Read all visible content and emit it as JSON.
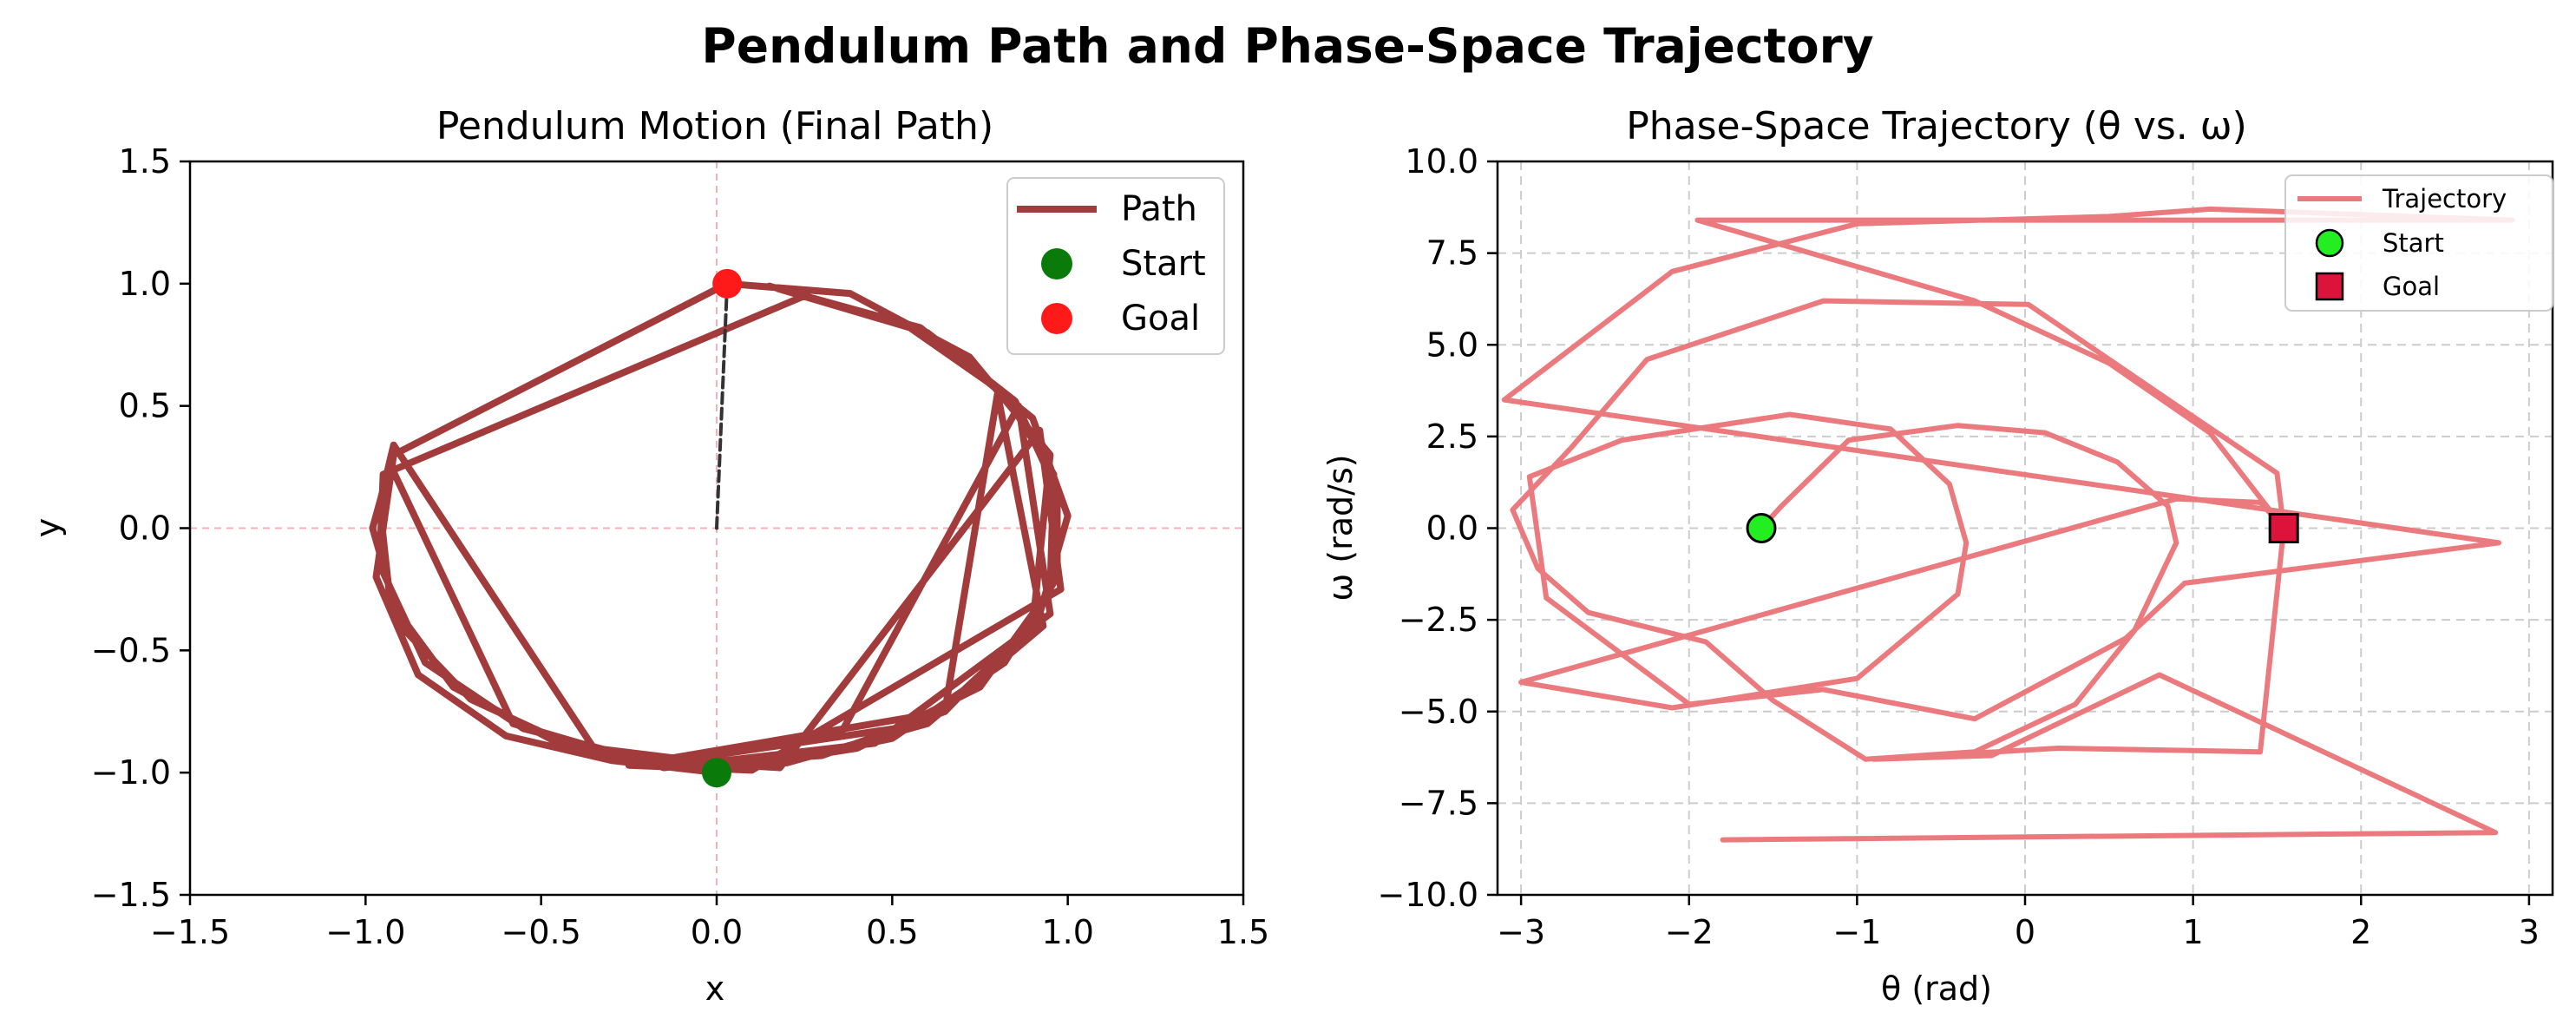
{
  "figure": {
    "suptitle": "Pendulum Path and Phase-Space Trajectory"
  },
  "colors": {
    "path": "#A23B3B",
    "start_marker": "#0A7A0A",
    "goal_marker": "#FF1A1A",
    "rod": "#333333",
    "crosshair": "#F5B0BE",
    "trajectory": "#EB7A7E",
    "phase_start": "#22EE22",
    "phase_goal": "#DC143C",
    "grid": "#CCCCCC"
  },
  "chart_data": [
    {
      "type": "line",
      "title": "Pendulum Motion (Final Path)",
      "xlabel": "x",
      "ylabel": "y",
      "xlim": [
        -1.5,
        1.5
      ],
      "ylim": [
        -1.5,
        1.5
      ],
      "xticks": [
        -1.5,
        -1.0,
        -0.5,
        0.0,
        0.5,
        1.0,
        1.5
      ],
      "yticks": [
        -1.5,
        -1.0,
        -0.5,
        0.0,
        0.5,
        1.0,
        1.5
      ],
      "xtick_labels": [
        "−1.5",
        "−1.0",
        "−0.5",
        "0.0",
        "0.5",
        "1.0",
        "1.5"
      ],
      "ytick_labels": [
        "−1.5",
        "−1.0",
        "−0.5",
        "0.0",
        "0.5",
        "1.0",
        "1.5"
      ],
      "grid": false,
      "legend_position": "top-right",
      "series": [
        {
          "name": "Path",
          "kind": "line",
          "points": [
            [
              0.0,
              -1.0
            ],
            [
              -0.3,
              -0.95
            ],
            [
              -0.6,
              -0.85
            ],
            [
              -0.85,
              -0.6
            ],
            [
              -0.97,
              -0.2
            ],
            [
              -0.92,
              0.3
            ],
            [
              0.03,
              1.0
            ],
            [
              0.38,
              0.96
            ],
            [
              0.72,
              0.7
            ],
            [
              0.95,
              0.3
            ],
            [
              0.9,
              -0.4
            ],
            [
              0.6,
              -0.8
            ],
            [
              0.2,
              -0.96
            ],
            [
              -0.2,
              -0.95
            ],
            [
              -0.55,
              -0.82
            ],
            [
              -0.83,
              -0.55
            ],
            [
              -0.96,
              -0.15
            ],
            [
              -0.95,
              0.22
            ],
            [
              0.25,
              0.95
            ],
            [
              0.58,
              0.82
            ],
            [
              0.9,
              0.45
            ],
            [
              1.0,
              0.05
            ],
            [
              0.92,
              -0.35
            ],
            [
              0.65,
              -0.75
            ],
            [
              0.3,
              -0.93
            ],
            [
              -0.1,
              -0.97
            ],
            [
              -0.45,
              -0.88
            ],
            [
              -0.75,
              -0.65
            ],
            [
              -0.93,
              -0.3
            ],
            [
              -0.96,
              0.1
            ],
            [
              -0.92,
              0.34
            ],
            [
              -0.35,
              -0.9
            ],
            [
              0.1,
              -0.98
            ],
            [
              0.5,
              -0.86
            ],
            [
              0.82,
              -0.55
            ],
            [
              0.97,
              -0.2
            ],
            [
              0.97,
              0.15
            ],
            [
              0.85,
              0.52
            ],
            [
              0.6,
              0.8
            ],
            [
              0.15,
              0.99
            ],
            [
              0.55,
              0.82
            ],
            [
              0.82,
              0.55
            ],
            [
              0.96,
              0.22
            ],
            [
              0.95,
              -0.25
            ],
            [
              0.75,
              -0.65
            ],
            [
              0.4,
              -0.9
            ],
            [
              0.0,
              -0.99
            ],
            [
              -0.4,
              -0.9
            ],
            [
              -0.7,
              -0.7
            ],
            [
              -0.9,
              -0.4
            ],
            [
              -0.98,
              0.0
            ],
            [
              -0.93,
              0.26
            ],
            [
              -0.58,
              -0.8
            ],
            [
              -0.15,
              -0.98
            ],
            [
              0.45,
              -0.88
            ],
            [
              0.95,
              -0.35
            ],
            [
              0.86,
              0.5
            ],
            [
              0.35,
              -0.85
            ],
            [
              -0.2,
              -0.97
            ],
            [
              0.6,
              -0.8
            ],
            [
              0.93,
              -0.4
            ],
            [
              0.8,
              0.55
            ],
            [
              0.65,
              -0.75
            ],
            [
              -0.25,
              -0.97
            ],
            [
              0.1,
              -0.99
            ],
            [
              0.98,
              -0.25
            ],
            [
              0.92,
              0.4
            ],
            [
              0.18,
              -0.98
            ],
            [
              -0.05,
              -0.96
            ]
          ]
        },
        {
          "name": "rod",
          "kind": "line",
          "points": [
            [
              0.0,
              0.0
            ],
            [
              0.03,
              1.0
            ]
          ]
        },
        {
          "name": "Start",
          "kind": "marker",
          "points": [
            [
              0.0,
              -1.0
            ]
          ]
        },
        {
          "name": "Goal",
          "kind": "marker",
          "points": [
            [
              0.03,
              1.0
            ]
          ]
        }
      ]
    },
    {
      "type": "line",
      "title": "Phase-Space Trajectory (θ vs. ω)",
      "xlabel": "θ (rad)",
      "ylabel": "ω (rad/s)",
      "xlim": [
        -3.14,
        3.14
      ],
      "ylim": [
        -10.0,
        10.0
      ],
      "xticks": [
        -3,
        -2,
        -1,
        0,
        1,
        2,
        3
      ],
      "yticks": [
        -10.0,
        -7.5,
        -5.0,
        -2.5,
        0.0,
        2.5,
        5.0,
        7.5,
        10.0
      ],
      "xtick_labels": [
        "−3",
        "−2",
        "−1",
        "0",
        "1",
        "2",
        "3"
      ],
      "ytick_labels": [
        "−10.0",
        "−7.5",
        "−5.0",
        "−2.5",
        "0.0",
        "2.5",
        "5.0",
        "7.5",
        "10.0"
      ],
      "grid": true,
      "legend_position": "top-right",
      "series": [
        {
          "name": "Trajectory",
          "kind": "line",
          "points": [
            [
              -1.57,
              0.0
            ],
            [
              -1.45,
              0.6
            ],
            [
              -1.05,
              2.4
            ],
            [
              -0.4,
              2.8
            ],
            [
              0.12,
              2.6
            ],
            [
              0.55,
              1.8
            ],
            [
              0.85,
              0.6
            ],
            [
              0.9,
              -0.4
            ],
            [
              0.65,
              -2.8
            ],
            [
              0.3,
              -4.8
            ],
            [
              -0.3,
              -6.1
            ],
            [
              -0.95,
              -6.3
            ],
            [
              -1.5,
              -4.7
            ],
            [
              -1.9,
              -3.1
            ],
            [
              -2.6,
              -2.3
            ],
            [
              -2.9,
              -1.1
            ],
            [
              -3.05,
              0.5
            ],
            [
              -2.7,
              2.2
            ],
            [
              -2.25,
              4.6
            ],
            [
              -1.2,
              6.2
            ],
            [
              0.02,
              6.1
            ],
            [
              0.95,
              3.2
            ],
            [
              1.5,
              1.5
            ],
            [
              1.54,
              0.0
            ],
            [
              1.4,
              0.7
            ],
            [
              0.9,
              0.8
            ],
            [
              -3.0,
              -4.2
            ],
            [
              -2.1,
              -4.9
            ],
            [
              -1.0,
              -4.1
            ],
            [
              -0.4,
              -1.8
            ],
            [
              -0.35,
              -0.4
            ],
            [
              -0.45,
              1.2
            ],
            [
              -0.8,
              2.7
            ],
            [
              -1.4,
              3.1
            ],
            [
              -2.4,
              2.4
            ],
            [
              -2.95,
              1.4
            ],
            [
              -2.85,
              -1.9
            ],
            [
              -2.0,
              -4.8
            ],
            [
              -1.2,
              -4.4
            ],
            [
              -0.3,
              -5.2
            ],
            [
              0.6,
              -3.0
            ],
            [
              0.95,
              -1.5
            ],
            [
              2.82,
              -0.4
            ],
            [
              -3.1,
              3.5
            ],
            [
              -2.1,
              7.0
            ],
            [
              -1.0,
              8.3
            ],
            [
              0.5,
              8.5
            ],
            [
              1.1,
              8.7
            ],
            [
              2.9,
              8.4
            ],
            [
              -1.95,
              8.4
            ],
            [
              -0.3,
              6.2
            ],
            [
              0.5,
              4.5
            ],
            [
              1.1,
              2.6
            ],
            [
              1.54,
              0.0
            ],
            [
              1.4,
              -6.1
            ],
            [
              0.2,
              -6.0
            ],
            [
              -0.9,
              -6.3
            ],
            [
              -0.2,
              -6.2
            ],
            [
              0.8,
              -4.0
            ],
            [
              2.8,
              -8.3
            ],
            [
              -1.8,
              -8.5
            ]
          ]
        },
        {
          "name": "Start",
          "kind": "marker",
          "points": [
            [
              -1.57,
              0.0
            ]
          ]
        },
        {
          "name": "Goal",
          "kind": "marker",
          "points": [
            [
              1.54,
              0.0
            ]
          ]
        }
      ]
    }
  ]
}
